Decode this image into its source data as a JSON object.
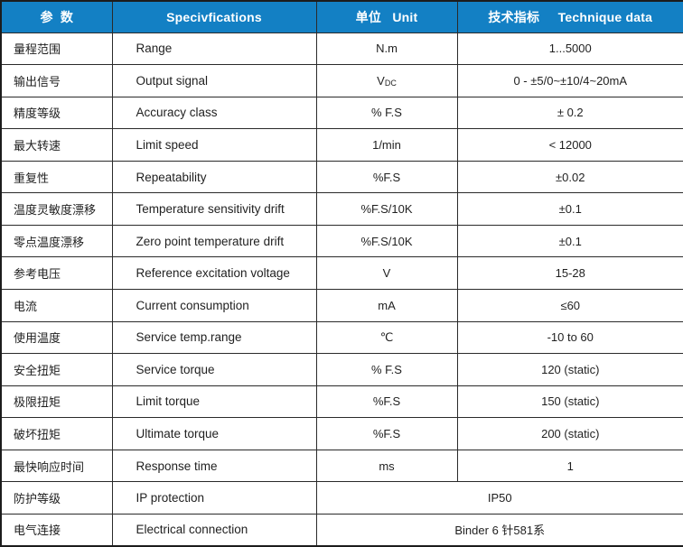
{
  "table": {
    "columns": [
      {
        "label": "参  数"
      },
      {
        "label": "Specivfications"
      },
      {
        "label": "单位   Unit"
      },
      {
        "label": "技术指标     Technique data"
      }
    ],
    "rows": [
      {
        "param": "量程范围",
        "spec": "Range",
        "unit": "N.m",
        "value": "1...5000"
      },
      {
        "param": "输出信号",
        "spec": "Output signal",
        "unit": "V",
        "unit_sub": "DC",
        "value": "0 - ±5/0~±10/4~20mA"
      },
      {
        "param": "精度等级",
        "spec": "Accuracy class",
        "unit": "% F.S",
        "value": "± 0.2"
      },
      {
        "param": "最大转速",
        "spec": "Limit speed",
        "unit": "1/min",
        "value": "< 12000"
      },
      {
        "param": "重复性",
        "spec": "Repeatability",
        "unit": "%F.S",
        "value": "±0.02"
      },
      {
        "param": "温度灵敏度漂移",
        "spec": "Temperature sensitivity drift",
        "unit": "%F.S/10K",
        "value": "±0.1"
      },
      {
        "param": "零点温度漂移",
        "spec": "Zero point temperature drift",
        "unit": "%F.S/10K",
        "value": "±0.1"
      },
      {
        "param": "参考电压",
        "spec": "Reference excitation voltage",
        "unit": "V",
        "value": "15-28"
      },
      {
        "param": "电流",
        "spec": "Current consumption",
        "unit": "mA",
        "value": "≤60"
      },
      {
        "param": "使用温度",
        "spec": "Service temp.range",
        "unit": "℃",
        "value": "-10 to 60"
      },
      {
        "param": "安全扭矩",
        "spec": "Service torque",
        "unit": "% F.S",
        "value": "120 (static)"
      },
      {
        "param": "极限扭矩",
        "spec": "Limit torque",
        "unit": "%F.S",
        "value": "150 (static)"
      },
      {
        "param": "破坏扭矩",
        "spec": "Ultimate torque",
        "unit": "%F.S",
        "value": "200 (static)"
      },
      {
        "param": "最快响应时间",
        "spec": "Response time",
        "unit": "ms",
        "value": "1"
      },
      {
        "param": "防护等级",
        "spec": "IP protection",
        "merged": true,
        "value": "IP50"
      },
      {
        "param": "电气连接",
        "spec": "Electrical connection",
        "merged": true,
        "value": "Binder 6 针581系"
      }
    ]
  },
  "colors": {
    "header_background": "#1380c4",
    "header_text": "#ffffff",
    "body_text": "#1f1f1f",
    "border": "#2a2a2a"
  }
}
